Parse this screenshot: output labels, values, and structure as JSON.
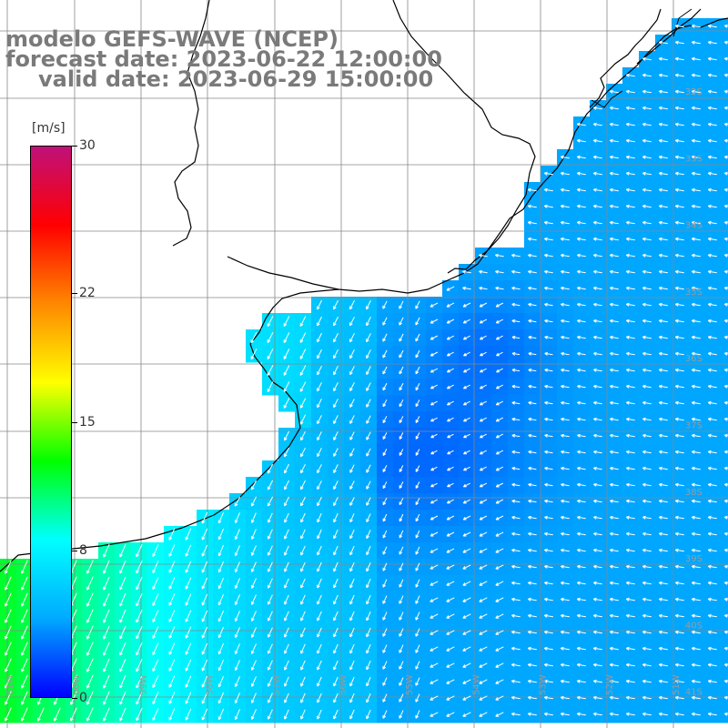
{
  "title": {
    "line1": "modelo GEFS-WAVE (NCEP)",
    "line2": "forecast date: 2023-06-22 12:00:00",
    "line3": "valid date: 2023-06-29 15:00:00"
  },
  "colorbar": {
    "units": "[m/s]",
    "min": 0,
    "max": 30,
    "ticks": [
      {
        "value": 30,
        "label": "30"
      },
      {
        "value": 22,
        "label": "22"
      },
      {
        "value": 15,
        "label": "15"
      },
      {
        "value": 8,
        "label": "8"
      },
      {
        "value": 0,
        "label": "0"
      }
    ],
    "colors": [
      "#0000ff",
      "#00aaff",
      "#00ffff",
      "#00ff00",
      "#ffff00",
      "#ff8800",
      "#ff0000",
      "#c0107a"
    ]
  },
  "map": {
    "lat_labels": [
      "32S",
      "33S",
      "34S",
      "35S",
      "36S",
      "37S",
      "38S",
      "39S",
      "40S",
      "41S"
    ],
    "lon_labels": [
      "61W",
      "60W",
      "59W",
      "58W",
      "57W",
      "56W",
      "55W",
      "54W",
      "53W",
      "52W",
      "51W"
    ],
    "wind_speed_ms_typical": {
      "ocean_east": 4,
      "plata_offshore": 6,
      "southwest": 11
    }
  }
}
